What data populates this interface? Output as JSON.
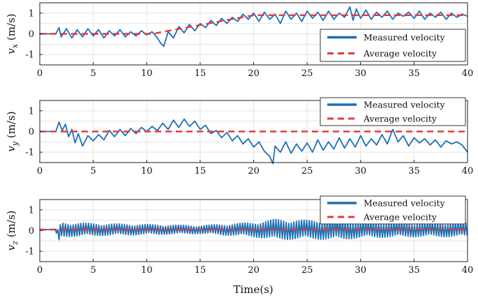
{
  "chart_data": [
    {
      "type": "line",
      "ylabel": {
        "symbol": "v",
        "sub": "x",
        "unit": "(m/s)"
      },
      "xlim": [
        0,
        40
      ],
      "ylim": [
        -1.5,
        1.5
      ],
      "xticks": [
        "0",
        "5",
        "10",
        "15",
        "20",
        "25",
        "30",
        "35",
        "40"
      ],
      "yticks": [
        "-1",
        "0",
        "1"
      ],
      "grid": true,
      "legend": "right",
      "series": [
        {
          "name": "Measured velocity",
          "color": "#1f6fb4",
          "x": [
            0,
            1.5,
            1.8,
            2,
            2.5,
            3,
            3.5,
            4,
            4.5,
            5,
            5.5,
            6,
            6.5,
            7,
            7.5,
            8,
            8.5,
            9,
            9.5,
            10,
            10.5,
            11,
            11.3,
            11.6,
            12,
            12.5,
            13,
            13.5,
            14,
            14.5,
            15,
            15.5,
            16,
            16.5,
            17,
            17.5,
            18,
            18.5,
            19,
            19.5,
            20,
            20.5,
            21,
            21.5,
            22,
            22.5,
            23,
            23.5,
            24,
            24.5,
            25,
            25.5,
            26,
            26.5,
            27,
            27.5,
            28,
            28.5,
            29,
            29.3,
            29.6,
            30,
            30.5,
            31,
            31.5,
            32,
            32.5,
            33,
            33.5,
            34,
            34.5,
            35,
            35.5,
            36,
            36.5,
            37,
            37.5,
            38,
            38.5,
            39,
            39.5,
            40
          ],
          "values": [
            0,
            0,
            0.3,
            -0.15,
            0.25,
            -0.2,
            0.2,
            -0.15,
            0.25,
            -0.1,
            0.2,
            -0.2,
            0.15,
            -0.1,
            0.2,
            -0.15,
            0.1,
            -0.1,
            0.15,
            -0.05,
            0.1,
            -0.2,
            -0.45,
            -0.6,
            0.1,
            -0.2,
            0.35,
            0.05,
            0.45,
            0.15,
            0.5,
            0.3,
            0.65,
            0.4,
            0.75,
            0.5,
            0.8,
            0.6,
            0.95,
            0.7,
            1.0,
            0.6,
            1.05,
            0.7,
            0.95,
            0.5,
            1.1,
            0.7,
            1.0,
            0.6,
            1.1,
            0.75,
            1.05,
            0.65,
            1.1,
            0.7,
            1.0,
            0.8,
            1.3,
            0.65,
            1.2,
            0.75,
            1.15,
            0.7,
            1.05,
            0.8,
            1.1,
            0.7,
            1.0,
            0.85,
            1.05,
            0.75,
            1.1,
            0.7,
            1.0,
            0.8,
            1.05,
            0.7,
            1.0,
            0.8,
            0.95,
            0.85
          ]
        },
        {
          "name": "Average velocity",
          "color": "#e23b3b",
          "dashed": true,
          "x": [
            0,
            10.5,
            20,
            40
          ],
          "values": [
            0,
            0,
            0.9,
            0.9
          ]
        }
      ]
    },
    {
      "type": "line",
      "ylabel": {
        "symbol": "v",
        "sub": "y",
        "unit": "(m/s)"
      },
      "xlim": [
        0,
        40
      ],
      "ylim": [
        -1.5,
        1.5
      ],
      "xticks": [
        "0",
        "5",
        "10",
        "15",
        "20",
        "25",
        "30",
        "35",
        "40"
      ],
      "yticks": [
        "-1",
        "0",
        "1"
      ],
      "grid": true,
      "legend": "top-right",
      "series": [
        {
          "name": "Measured velocity",
          "color": "#1f6fb4",
          "x": [
            0,
            1.5,
            1.8,
            2.1,
            2.4,
            2.7,
            3,
            3.3,
            3.6,
            4,
            4.5,
            5,
            5.5,
            6,
            6.5,
            7,
            7.5,
            8,
            8.5,
            9,
            9.5,
            10,
            10.5,
            11,
            11.5,
            12,
            12.5,
            13,
            13.5,
            14,
            14.5,
            15,
            15.5,
            16,
            16.5,
            17,
            17.5,
            18,
            18.5,
            19,
            19.5,
            20,
            20.5,
            21,
            21.5,
            21.8,
            22,
            22.5,
            23,
            23.5,
            24,
            24.5,
            25,
            25.5,
            26,
            26.5,
            27,
            27.5,
            28,
            28.5,
            29,
            29.5,
            30,
            30.5,
            31,
            31.5,
            32,
            32.5,
            33,
            33.5,
            34,
            34.5,
            35,
            35.5,
            36,
            36.5,
            37,
            37.5,
            38,
            38.5,
            39,
            39.5,
            40
          ],
          "values": [
            0,
            0,
            0.45,
            0.05,
            0.35,
            -0.25,
            0.1,
            -0.55,
            -0.1,
            -0.7,
            -0.2,
            -0.45,
            -0.15,
            -0.4,
            0.05,
            -0.25,
            0.1,
            -0.2,
            0.15,
            -0.1,
            0.2,
            0.0,
            0.25,
            0.05,
            0.4,
            0.1,
            0.55,
            0.2,
            0.6,
            0.25,
            0.5,
            0.1,
            0.3,
            -0.1,
            0.05,
            -0.3,
            -0.05,
            -0.45,
            -0.2,
            -0.6,
            -0.35,
            -0.75,
            -0.5,
            -0.95,
            -1.2,
            -1.55,
            -0.7,
            -1.0,
            -0.5,
            -1.05,
            -0.6,
            -0.95,
            -0.55,
            -1.0,
            -0.4,
            -0.9,
            -0.5,
            -0.85,
            -0.3,
            -0.8,
            -0.35,
            -0.75,
            -0.2,
            -0.7,
            -0.35,
            -0.65,
            -0.15,
            -0.6,
            0.1,
            -0.5,
            -0.2,
            -0.7,
            -0.3,
            -0.55,
            -0.35,
            -0.65,
            -0.4,
            -0.75,
            -0.45,
            -0.6,
            -0.5,
            -0.65,
            -1.0
          ]
        },
        {
          "name": "Average velocity",
          "color": "#e23b3b",
          "dashed": true,
          "x": [
            0,
            40
          ],
          "values": [
            0,
            0
          ]
        }
      ]
    },
    {
      "type": "line",
      "ylabel": {
        "symbol": "v",
        "sub": "z",
        "unit": "(m/s)"
      },
      "xlabel": "Time(s)",
      "xlim": [
        0,
        40
      ],
      "ylim": [
        -1.5,
        1.5
      ],
      "xticks": [
        "0",
        "5",
        "10",
        "15",
        "20",
        "25",
        "30",
        "35",
        "40"
      ],
      "yticks": [
        "-1",
        "0",
        "1"
      ],
      "grid": true,
      "legend": "top-right",
      "series": [
        {
          "name": "Measured velocity",
          "color": "#1f6fb4",
          "oscillating": true,
          "x": [
            0,
            1.5,
            1.7,
            2,
            5,
            10,
            15,
            20,
            22,
            25,
            28,
            30,
            35,
            40
          ],
          "center": [
            0.05,
            0.05,
            -0.3,
            0.05,
            0.05,
            0.05,
            0.05,
            0.05,
            0.05,
            0.05,
            0.05,
            0.05,
            0.05,
            0.05
          ],
          "amplitude": [
            0,
            0,
            0.35,
            0.35,
            0.3,
            0.25,
            0.2,
            0.35,
            0.5,
            0.45,
            0.5,
            0.4,
            0.35,
            0.35
          ]
        },
        {
          "name": "Average velocity",
          "color": "#e23b3b",
          "dashed": true,
          "x": [
            0,
            40
          ],
          "values": [
            0.05,
            0.05
          ]
        }
      ]
    }
  ]
}
